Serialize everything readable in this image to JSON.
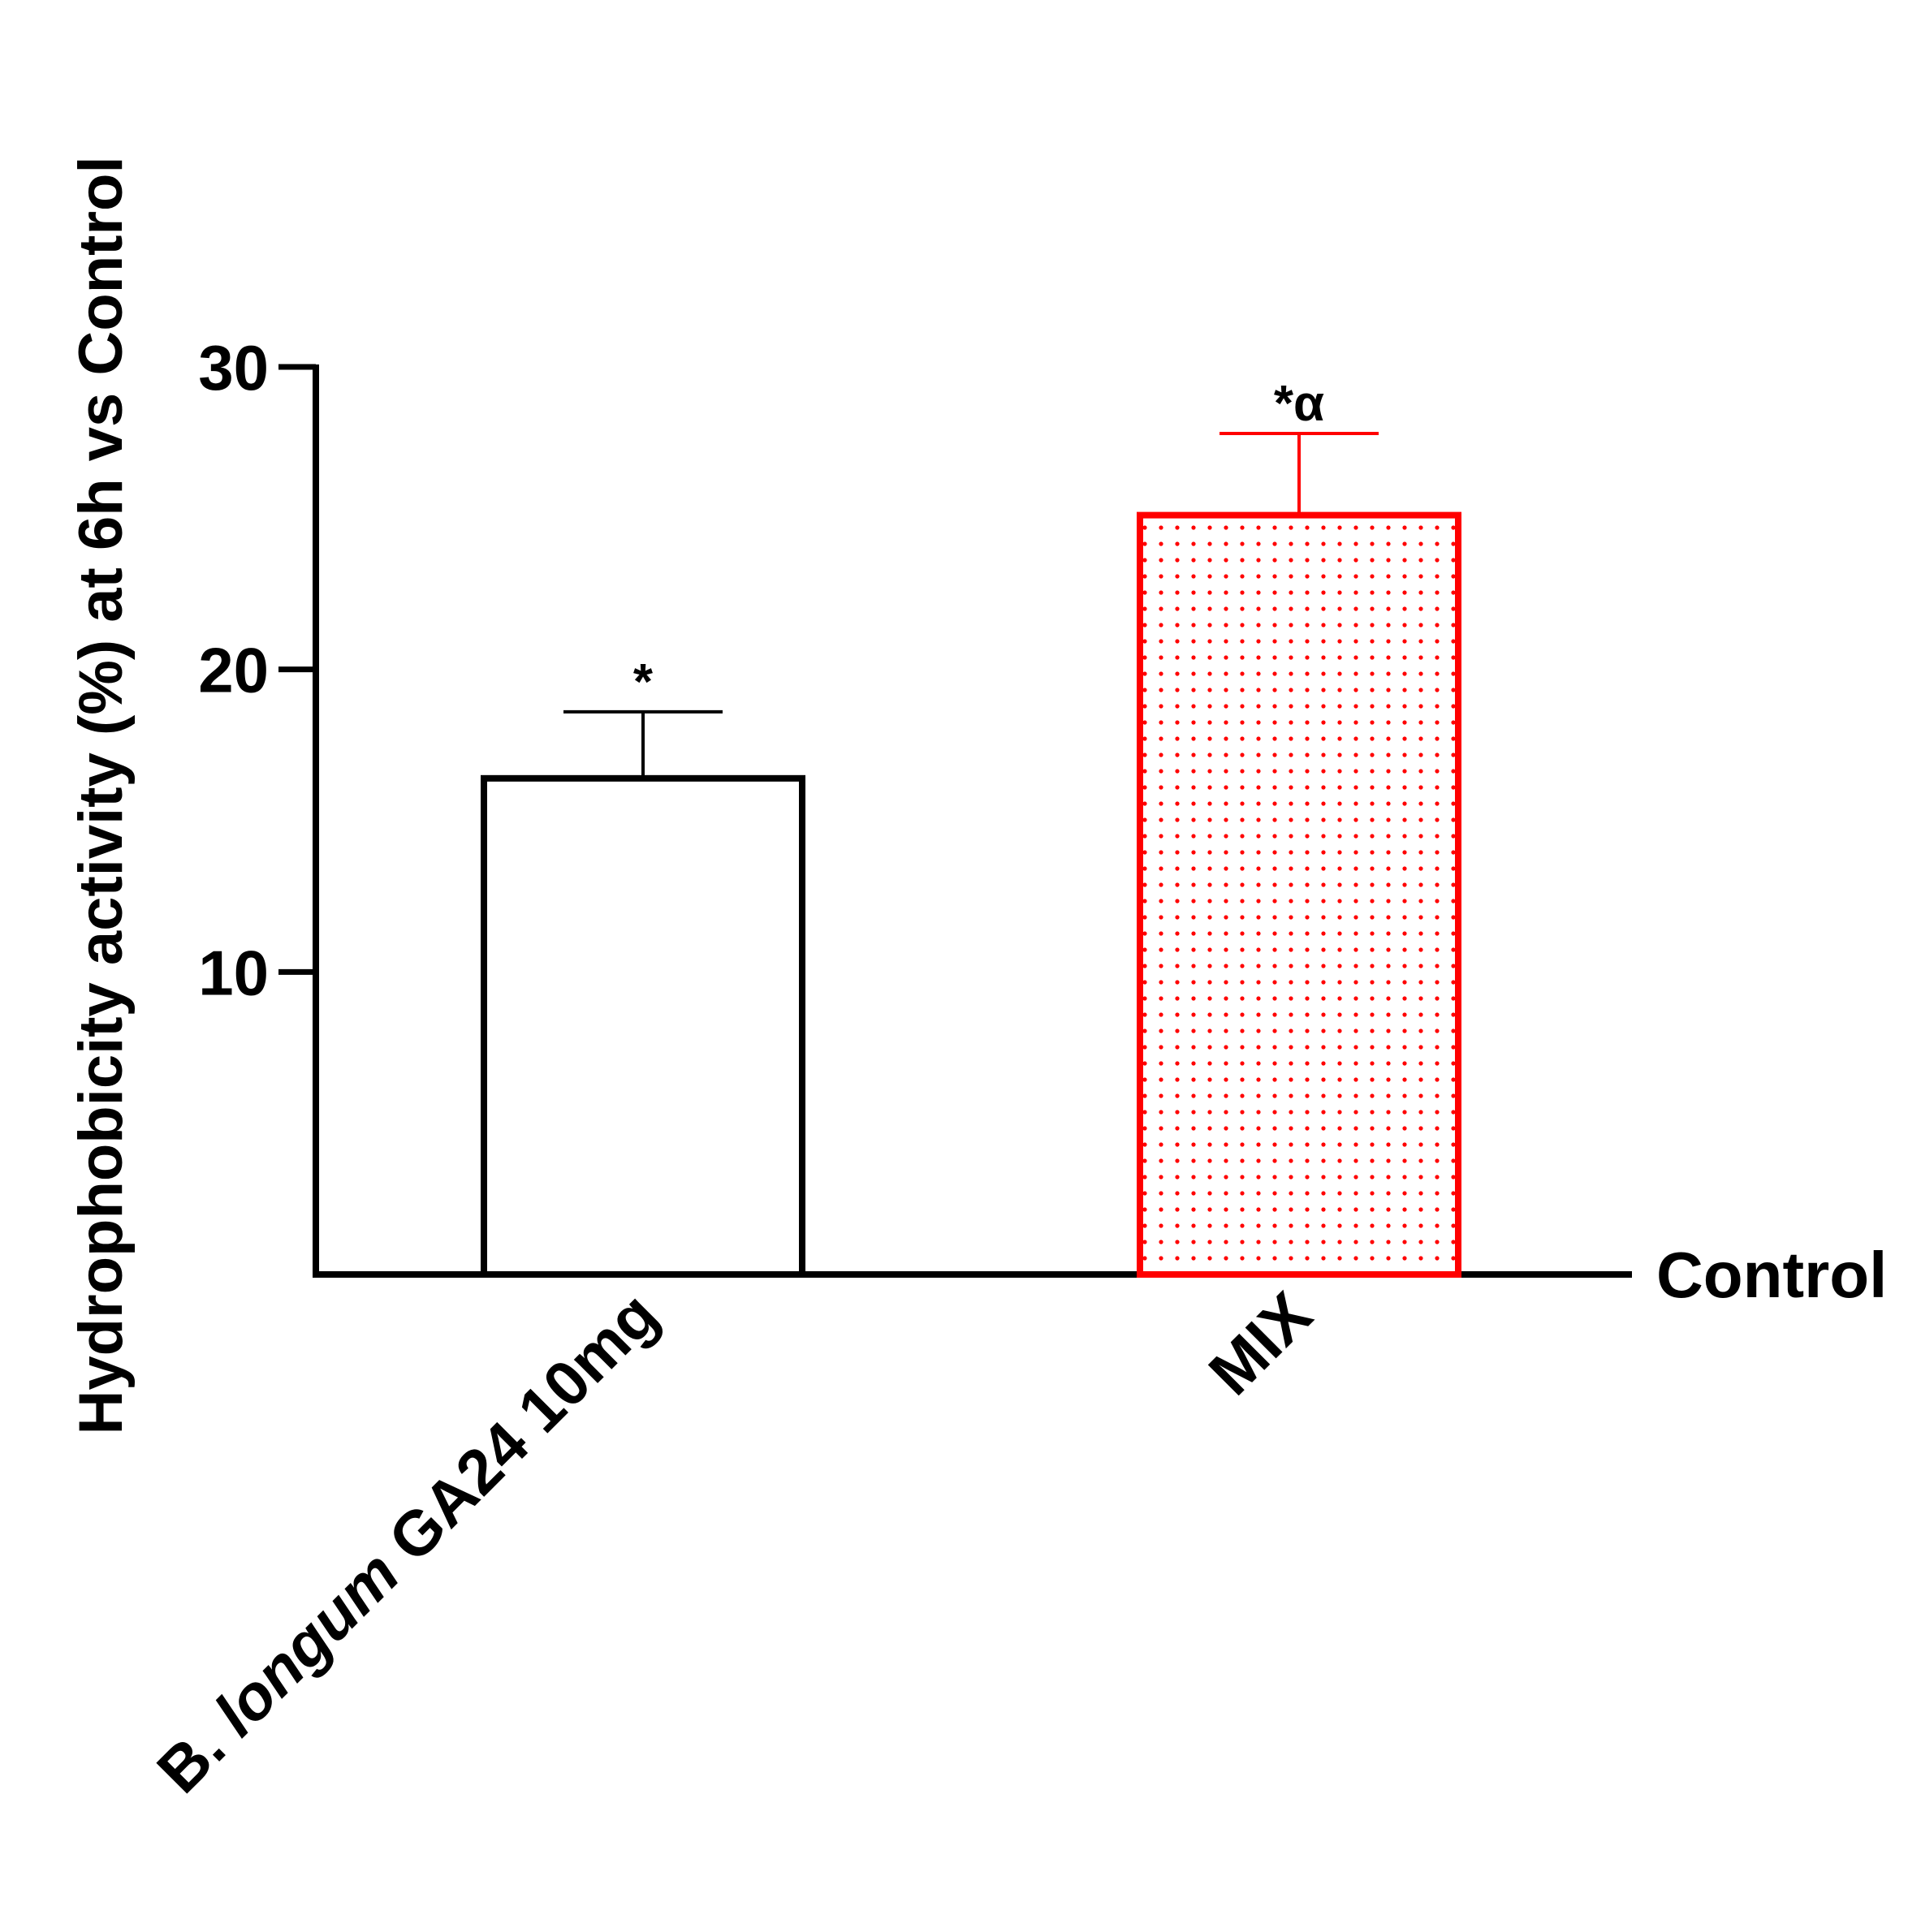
{
  "chart_data": {
    "type": "bar",
    "ylabel": "Hydrophobicity activity (%) at 6h vs Control",
    "baseline_label": "Control",
    "ylim": [
      0,
      30
    ],
    "yticks": [
      10,
      20,
      30
    ],
    "tick_labels": [
      "10",
      "20",
      "30"
    ],
    "grid": false,
    "legend": "none",
    "categories": [
      {
        "label_parts": [
          "B. ",
          "longum",
          " GA24 10mg"
        ],
        "italic_index": 1
      },
      {
        "label_parts": [
          "MIX"
        ],
        "italic_index": -1
      }
    ],
    "values": [
      16.4,
      25.1
    ],
    "errors": [
      2.2,
      2.7
    ],
    "annotations": [
      "*",
      "*α"
    ],
    "colors": [
      "#000000",
      "#ff0000"
    ],
    "fills": [
      "#ffffff",
      "dotted-red"
    ]
  }
}
